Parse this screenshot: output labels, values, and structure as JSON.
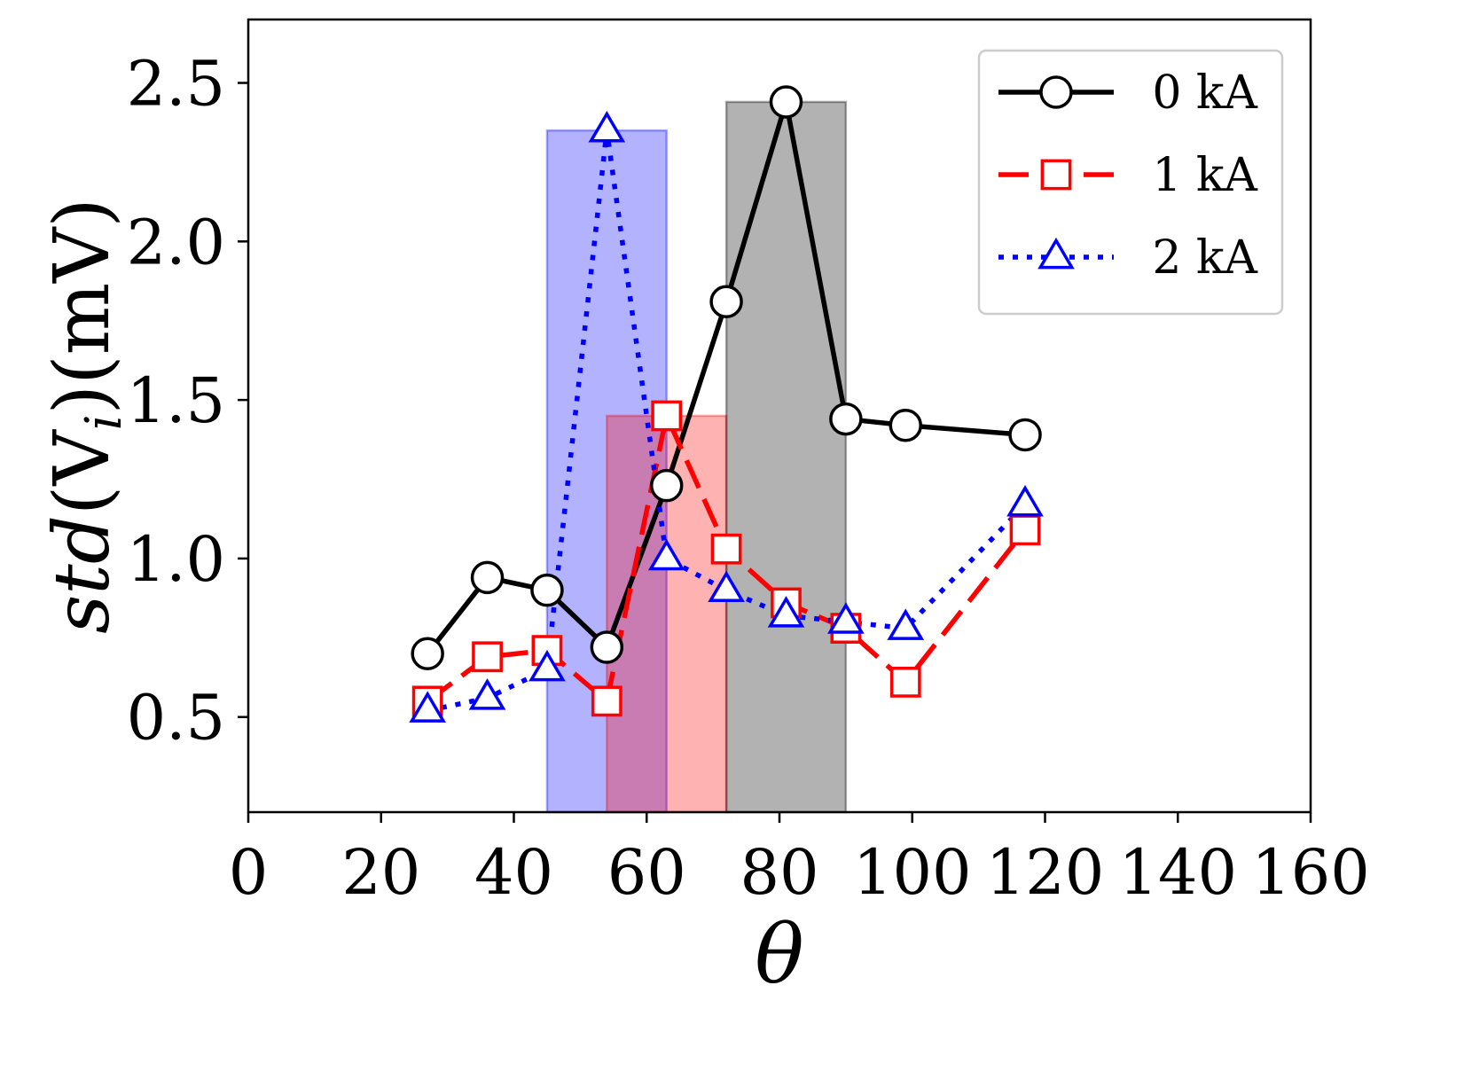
{
  "chart_data": {
    "type": "line",
    "xlabel": "θ",
    "ylabel": {
      "italic": "std",
      "rest": "(V",
      "subscript": "i",
      "close": ")(mV)"
    },
    "xlim": [
      0,
      160
    ],
    "ylim": [
      0.2,
      2.7
    ],
    "xticks": [
      0,
      20,
      40,
      60,
      80,
      100,
      120,
      140,
      160
    ],
    "xtick_labels": [
      "0",
      "20",
      "40",
      "60",
      "80",
      "100",
      "120",
      "140",
      "160"
    ],
    "yticks": [
      0.5,
      1.0,
      1.5,
      2.0,
      2.5
    ],
    "ytick_labels": [
      "0.5",
      "1.0",
      "1.5",
      "2.0",
      "2.5"
    ],
    "grid": false,
    "legend_position": "top-right",
    "series": [
      {
        "name": "0 kA",
        "color": "#000000",
        "linestyle": "solid",
        "marker": "circle",
        "x": [
          27,
          36,
          45,
          54,
          63,
          72,
          81,
          90,
          99,
          117
        ],
        "values": [
          0.7,
          0.94,
          0.9,
          0.72,
          1.23,
          1.81,
          2.44,
          1.44,
          1.42,
          1.39
        ]
      },
      {
        "name": "1 kA",
        "color": "#ff0000",
        "linestyle": "dashed",
        "marker": "square",
        "x": [
          27,
          36,
          45,
          54,
          63,
          72,
          81,
          90,
          99,
          117
        ],
        "values": [
          0.55,
          0.69,
          0.71,
          0.55,
          1.45,
          1.03,
          0.86,
          0.78,
          0.61,
          1.09
        ]
      },
      {
        "name": "2 kA",
        "color": "#0000ff",
        "linestyle": "dotted",
        "marker": "triangle",
        "x": [
          27,
          36,
          45,
          54,
          63,
          72,
          81,
          90,
          99,
          117
        ],
        "values": [
          0.52,
          0.56,
          0.65,
          2.35,
          1.0,
          0.9,
          0.82,
          0.8,
          0.78,
          1.17
        ]
      }
    ],
    "shaded_regions": [
      {
        "series": "2 kA",
        "x_start": 45,
        "x_end": 63,
        "y_top": 2.35,
        "color": "#0000ff",
        "opacity": 0.3
      },
      {
        "series": "1 kA",
        "x_start": 54,
        "x_end": 72,
        "y_top": 1.45,
        "color": "#ff0000",
        "opacity": 0.3
      },
      {
        "series": "0 kA",
        "x_start": 72,
        "x_end": 90,
        "y_top": 2.44,
        "color": "#000000",
        "opacity": 0.3
      }
    ]
  }
}
